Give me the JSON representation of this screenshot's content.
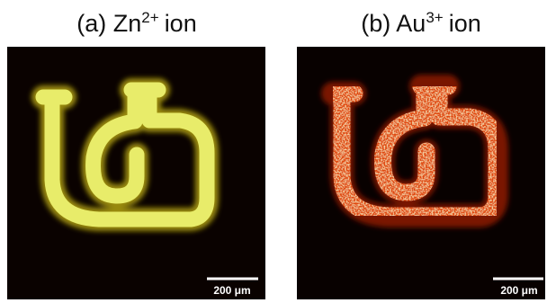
{
  "panels": [
    {
      "title": {
        "label": "(a) Zn",
        "superscript": "2+",
        "suffix": "ion"
      },
      "scale_bar": "200 μm"
    },
    {
      "title": {
        "label": "(b) Au",
        "superscript": "3+",
        "suffix": "ion"
      },
      "scale_bar": "200 μm"
    }
  ]
}
